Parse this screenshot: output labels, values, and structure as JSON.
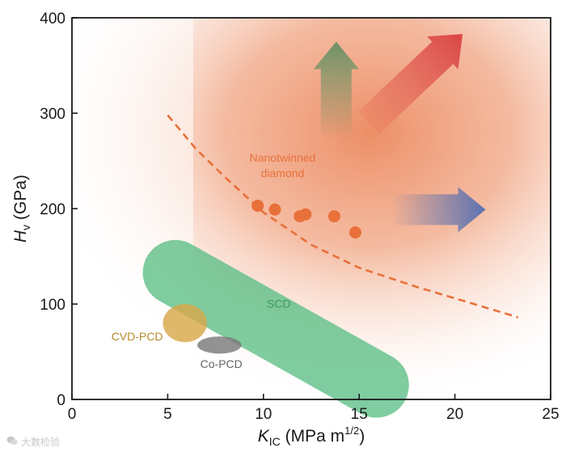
{
  "chart_data": {
    "type": "scatter",
    "title": "",
    "xlabel": {
      "symbol": "K",
      "sub": "IC",
      "unit_pre": " (MPa m",
      "unit_sup": "1/2",
      "unit_post": ")"
    },
    "ylabel": {
      "symbol": "H",
      "sub": "v",
      "unit": " (GPa)"
    },
    "xlim": [
      0,
      25
    ],
    "ylim": [
      0,
      400
    ],
    "xticks": [
      0,
      5,
      10,
      15,
      20,
      25
    ],
    "yticks": [
      0,
      100,
      200,
      300,
      400
    ],
    "series": [
      {
        "name": "Nanotwinned diamond",
        "color": "#e8703a",
        "points": [
          {
            "x": 9.7,
            "y": 203
          },
          {
            "x": 10.6,
            "y": 199
          },
          {
            "x": 11.9,
            "y": 192
          },
          {
            "x": 12.2,
            "y": 194
          },
          {
            "x": 13.7,
            "y": 192
          },
          {
            "x": 14.8,
            "y": 175
          }
        ]
      }
    ],
    "trend_line": {
      "name": "boundary",
      "style": "dashed",
      "color": "#e8703a",
      "points": [
        [
          5,
          298
        ],
        [
          6.5,
          262
        ],
        [
          8,
          233
        ],
        [
          10,
          196
        ],
        [
          12.5,
          162
        ],
        [
          15,
          138
        ],
        [
          18,
          118
        ],
        [
          21,
          100
        ],
        [
          23.3,
          86
        ]
      ]
    },
    "regions": [
      {
        "name": "SCD",
        "label": "SCD",
        "color": "#5cbf86",
        "label_color": "#3a9a5a",
        "x_from": 5.4,
        "y_from": 133,
        "x_to": 15.9,
        "y_to": 15,
        "width_x": 3.4
      },
      {
        "name": "CVD-PCD",
        "label": "CVD-PCD",
        "color": "#d9a84a",
        "label_color": "#b88a2a",
        "cx": 5.9,
        "cy": 80,
        "rx": 1.15,
        "ry": 20
      },
      {
        "name": "Co-PCD",
        "label": "Co-PCD",
        "color": "#7a7a7a",
        "label_color": "#666666",
        "cx": 7.7,
        "cy": 57,
        "rx": 1.15,
        "ry": 9
      }
    ],
    "annotations": [
      {
        "name": "nanotwinned-label",
        "lines": [
          "Nanotwinned",
          "diamond"
        ],
        "x": 11,
        "y": 249,
        "color": "#e8703a"
      }
    ],
    "arrows": [
      {
        "name": "up-arrow",
        "color": "#5f8f5f",
        "from": [
          13.8,
          272
        ],
        "to": [
          13.8,
          375
        ]
      },
      {
        "name": "diagonal-arrow",
        "color": "#d83838",
        "from": [
          15.5,
          290
        ],
        "to": [
          20.4,
          383
        ]
      },
      {
        "name": "right-arrow",
        "color": "#4b69b0",
        "from": [
          16.7,
          199
        ],
        "to": [
          21.6,
          199
        ]
      }
    ]
  },
  "watermark": {
    "icon": "wechat-icon",
    "text": "大数检验"
  }
}
